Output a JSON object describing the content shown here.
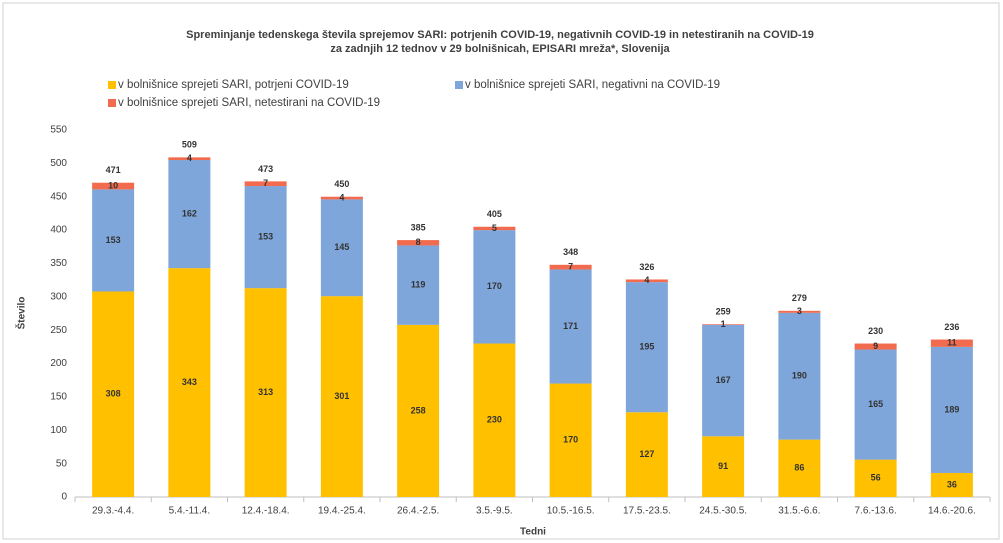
{
  "chart_data": {
    "type": "stacked-bar",
    "title": [
      "Spreminjanje tedenskega števila sprejemov SARI: potrjenih COVID-19, negativnih COVID-19 in netestiranih na COVID-19",
      "za zadnjih 12 tednov v 29 bolnišnicah, EPISARI mreža*, Slovenija"
    ],
    "x_label": "Tedni",
    "y_label": "Število",
    "categories": [
      "29.3.-4.4.",
      "5.4.-11.4.",
      "12.4.-18.4.",
      "19.4.-25.4.",
      "26.4.-2.5.",
      "3.5.-9.5.",
      "10.5.-16.5.",
      "17.5.-23.5.",
      "24.5.-30.5.",
      "31.5.-6.6.",
      "7.6.-13.6.",
      "14.6.-20.6."
    ],
    "series": [
      {
        "name": "v bolnišnice sprejeti SARI, potrjeni COVID-19",
        "color": "#ffc000",
        "values": [
          308,
          343,
          313,
          301,
          258,
          230,
          170,
          127,
          91,
          86,
          56,
          36
        ]
      },
      {
        "name": "v bolnišnice sprejeti SARI, negativni na COVID-19",
        "color": "#7ea6da",
        "values": [
          153,
          162,
          153,
          145,
          119,
          170,
          171,
          195,
          167,
          190,
          165,
          189
        ]
      },
      {
        "name": "v bolnišnice sprejeti SARI, netestirani na COVID-19",
        "color": "#f26b4e",
        "values": [
          10,
          4,
          7,
          4,
          8,
          5,
          7,
          4,
          1,
          3,
          9,
          11
        ]
      }
    ],
    "totals": [
      471,
      509,
      473,
      450,
      385,
      405,
      348,
      326,
      259,
      279,
      230,
      236
    ],
    "ylim": [
      0,
      550
    ],
    "yticks": [
      0,
      50,
      100,
      150,
      200,
      250,
      300,
      350,
      400,
      450,
      500,
      550
    ],
    "grid": false
  }
}
